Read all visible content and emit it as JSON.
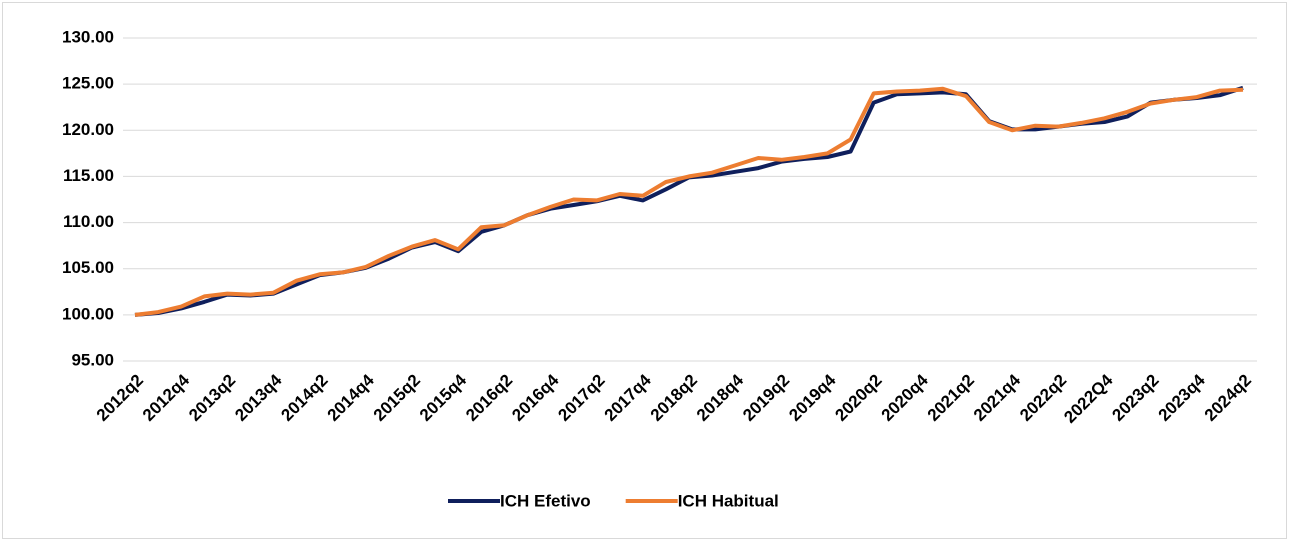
{
  "chart_data": {
    "type": "line",
    "categories": [
      "2012q2",
      null,
      "2012q4",
      null,
      "2013q2",
      null,
      "2013q4",
      null,
      "2014q2",
      null,
      "2014q4",
      null,
      "2015q2",
      null,
      "2015q4",
      null,
      "2016q2",
      null,
      "2016q4",
      null,
      "2017q2",
      null,
      "2017q4",
      null,
      "2018q2",
      null,
      "2018q4",
      null,
      "2019q2",
      null,
      "2019q4",
      null,
      "2020q2",
      null,
      "2020q4",
      null,
      "2021q2",
      null,
      "2021q4",
      null,
      "2022q2",
      null,
      "2022Q4",
      null,
      "2023q2",
      null,
      "2023q4",
      null,
      "2024q2"
    ],
    "series": [
      {
        "name": "ICH Efetivo",
        "color": "#0f1f5c",
        "values": [
          100.0,
          100.2,
          100.7,
          101.4,
          102.2,
          102.1,
          102.3,
          103.3,
          104.3,
          104.6,
          105.1,
          106.1,
          107.3,
          107.9,
          106.9,
          109.0,
          109.7,
          110.8,
          111.5,
          111.9,
          112.3,
          112.9,
          112.4,
          113.6,
          114.9,
          115.1,
          115.5,
          115.9,
          116.6,
          116.9,
          117.1,
          117.7,
          123.0,
          123.9,
          124.0,
          124.1,
          123.9,
          121.0,
          120.1,
          120.1,
          120.4,
          120.7,
          120.9,
          121.5,
          123.0,
          123.3,
          123.5,
          123.8,
          124.6
        ]
      },
      {
        "name": "ICH Habitual",
        "color": "#ed7d31",
        "values": [
          100.0,
          100.3,
          100.9,
          102.0,
          102.3,
          102.2,
          102.4,
          103.7,
          104.4,
          104.6,
          105.2,
          106.4,
          107.4,
          108.1,
          107.1,
          109.5,
          109.7,
          110.8,
          111.7,
          112.5,
          112.4,
          113.1,
          112.9,
          114.4,
          115.0,
          115.4,
          116.2,
          117.0,
          116.8,
          117.1,
          117.5,
          119.0,
          124.0,
          124.2,
          124.3,
          124.5,
          123.7,
          120.9,
          120.0,
          120.5,
          120.4,
          120.8,
          121.3,
          122.0,
          122.9,
          123.3,
          123.6,
          124.3,
          124.4
        ]
      }
    ],
    "ylim": [
      95,
      130
    ],
    "yticks": [
      {
        "value": 95,
        "label": "95.00"
      },
      {
        "value": 100,
        "label": "100.00"
      },
      {
        "value": 105,
        "label": "105.00"
      },
      {
        "value": 110,
        "label": "110.00"
      },
      {
        "value": 115,
        "label": "115.00"
      },
      {
        "value": 120,
        "label": "120.00"
      },
      {
        "value": 125,
        "label": "125.00"
      },
      {
        "value": 130,
        "label": "130.00"
      }
    ],
    "grid": true,
    "legend": "bottom"
  }
}
